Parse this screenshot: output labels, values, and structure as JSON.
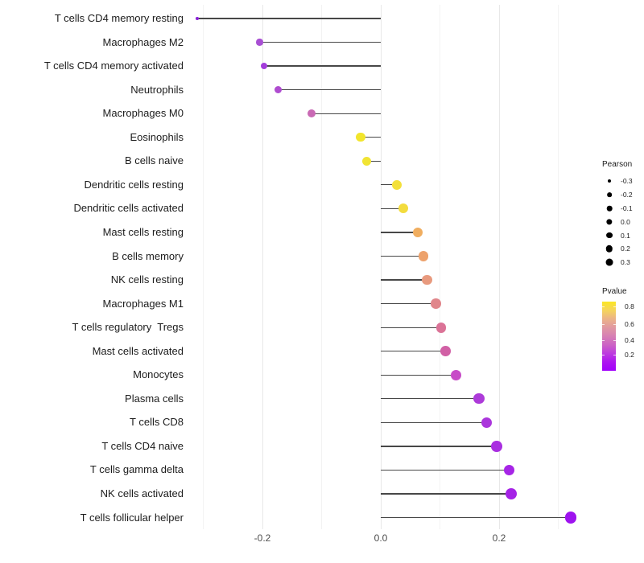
{
  "chart_data": {
    "type": "scatter",
    "subtype": "lollipop",
    "title": "",
    "xlabel": "",
    "ylabel": "",
    "xlim": [
      -0.327,
      0.325
    ],
    "baseline": 0.0,
    "grid": true,
    "gridline_values": [
      -0.3,
      -0.2,
      -0.1,
      0.0,
      0.1,
      0.2,
      0.3
    ],
    "gridline_major": [
      -0.2,
      0.0,
      0.2
    ],
    "x_ticks": [
      {
        "value": -0.2,
        "label": "-0.2"
      },
      {
        "value": 0.0,
        "label": "0.0"
      },
      {
        "value": 0.2,
        "label": "0.2"
      }
    ],
    "points": [
      {
        "label": "T cells CD4 memory resting",
        "pearson": -0.31,
        "color": "#8A21D8"
      },
      {
        "label": "Macrophages M2",
        "pearson": -0.205,
        "color": "#A84FD3"
      },
      {
        "label": "T cells CD4 memory activated",
        "pearson": -0.197,
        "color": "#A33DDB"
      },
      {
        "label": "Neutrophils",
        "pearson": -0.173,
        "color": "#AF4CD0"
      },
      {
        "label": "Macrophages M0",
        "pearson": -0.117,
        "color": "#C969B4"
      },
      {
        "label": "Eosinophils",
        "pearson": -0.034,
        "color": "#F2E52C"
      },
      {
        "label": "B cells naive",
        "pearson": -0.024,
        "color": "#F1E433"
      },
      {
        "label": "Dendritic cells resting",
        "pearson": 0.027,
        "color": "#F3E03A"
      },
      {
        "label": "Dendritic cells activated",
        "pearson": 0.038,
        "color": "#F3DC3E"
      },
      {
        "label": "Mast cells resting",
        "pearson": 0.063,
        "color": "#F0AD5F"
      },
      {
        "label": "B cells memory",
        "pearson": 0.072,
        "color": "#EDA26C"
      },
      {
        "label": "NK cells resting",
        "pearson": 0.078,
        "color": "#E89A7E"
      },
      {
        "label": "Macrophages M1",
        "pearson": 0.093,
        "color": "#E0868B"
      },
      {
        "label": "T cells regulatory  Tregs",
        "pearson": 0.102,
        "color": "#DB7397"
      },
      {
        "label": "Mast cells activated",
        "pearson": 0.11,
        "color": "#D160A5"
      },
      {
        "label": "Monocytes",
        "pearson": 0.127,
        "color": "#C74BC7"
      },
      {
        "label": "Plasma cells",
        "pearson": 0.166,
        "color": "#AD3BD9"
      },
      {
        "label": "T cells CD8",
        "pearson": 0.179,
        "color": "#AB36DC"
      },
      {
        "label": "T cells CD4 naive",
        "pearson": 0.196,
        "color": "#A92FE0"
      },
      {
        "label": "T cells gamma delta",
        "pearson": 0.217,
        "color": "#A625E6"
      },
      {
        "label": "NK cells activated",
        "pearson": 0.22,
        "color": "#A523E6"
      },
      {
        "label": "T cells follicular helper",
        "pearson": 0.321,
        "color": "#9E13EF"
      }
    ],
    "size_legend": {
      "title": "Pearson",
      "entries": [
        {
          "label": "-0.3",
          "value": -0.3
        },
        {
          "label": "-0.2",
          "value": -0.2
        },
        {
          "label": "-0.1",
          "value": -0.1
        },
        {
          "label": "0.0",
          "value": 0.0
        },
        {
          "label": "0.1",
          "value": 0.1
        },
        {
          "label": "0.2",
          "value": 0.2
        },
        {
          "label": "0.3",
          "value": 0.3
        }
      ]
    },
    "color_legend": {
      "title": "Pvalue",
      "ticks": [
        {
          "label": "0.8",
          "pos": 0.07
        },
        {
          "label": "0.6",
          "pos": 0.33
        },
        {
          "label": "0.4",
          "pos": 0.56
        },
        {
          "label": "0.2",
          "pos": 0.77
        }
      ],
      "gradient_stops_bottom_to_top": [
        "#A201FB",
        "#AD14F0",
        "#BD3BDF",
        "#CC63C4",
        "#D77FB4",
        "#E098A2",
        "#EBB388",
        "#F5D45C",
        "#FBE723"
      ]
    },
    "colors": {
      "stem": "#474747",
      "axis_text": "#4D4D4D",
      "label_text": "#1C1C1C",
      "grid_major": "#E8E8E8",
      "grid_minor": "#F3F3F3",
      "background": "#FFFFFF",
      "legend_dot": "#000000"
    }
  }
}
